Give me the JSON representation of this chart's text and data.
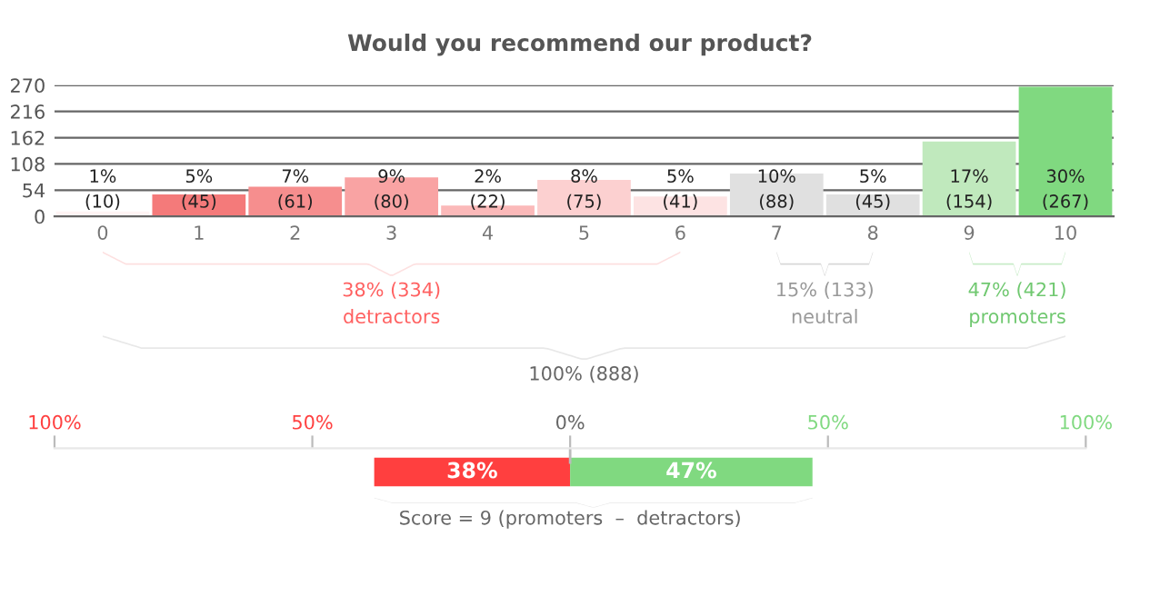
{
  "chart_data": [
    {
      "type": "bar",
      "title": "Would you recommend our product?",
      "categories": [
        "0",
        "1",
        "2",
        "3",
        "4",
        "5",
        "6",
        "7",
        "8",
        "9",
        "10"
      ],
      "values": [
        10,
        45,
        61,
        80,
        22,
        75,
        41,
        88,
        45,
        154,
        267
      ],
      "colors": [
        "#fff4f4",
        "#f47a7a",
        "#f68e8e",
        "#f9a3a3",
        "#fbb9b9",
        "#fcd0d0",
        "#fde3e3",
        "#e0e0e0",
        "#e0e0e0",
        "#c0e9bd",
        "#80d980"
      ],
      "value_labels": [
        "1%\n(10)",
        "5%\n(45)",
        "7%\n(61)",
        "9%\n(80)",
        "2%\n(22)",
        "8%\n(75)",
        "5%\n(41)",
        "10%\n(88)",
        "5%\n(45)",
        "17%\n(154)",
        "30%\n(267)"
      ],
      "ylim": [
        0,
        270
      ],
      "yticks": [
        0,
        54,
        108,
        162,
        216,
        270
      ],
      "grid": "y",
      "annotations": [
        "38% (334)\ndetractors",
        "15% (133)\nneutral",
        "47% (421)\npromoters",
        "100% (888)"
      ]
    },
    {
      "type": "bar",
      "orientation": "horizontal",
      "stacked": true,
      "categories": [
        null
      ],
      "series": [
        {
          "color": "#ff3f3f",
          "values": [
            -38
          ]
        },
        {
          "color": "#80d980",
          "values": [
            47
          ]
        }
      ],
      "value_labels": [
        [
          "38%"
        ],
        [
          "47%"
        ]
      ],
      "xlim": [
        -100,
        100
      ],
      "xticks": [
        {
          "value": -100,
          "label": "100%"
        },
        {
          "value": -50,
          "label": "50%"
        },
        {
          "value": 0,
          "label": "0%"
        },
        {
          "value": 50,
          "label": "50%"
        },
        {
          "value": 100,
          "label": "100%"
        }
      ],
      "annotations": [
        "Score = 9 (promoters  –  detractors)"
      ]
    }
  ]
}
